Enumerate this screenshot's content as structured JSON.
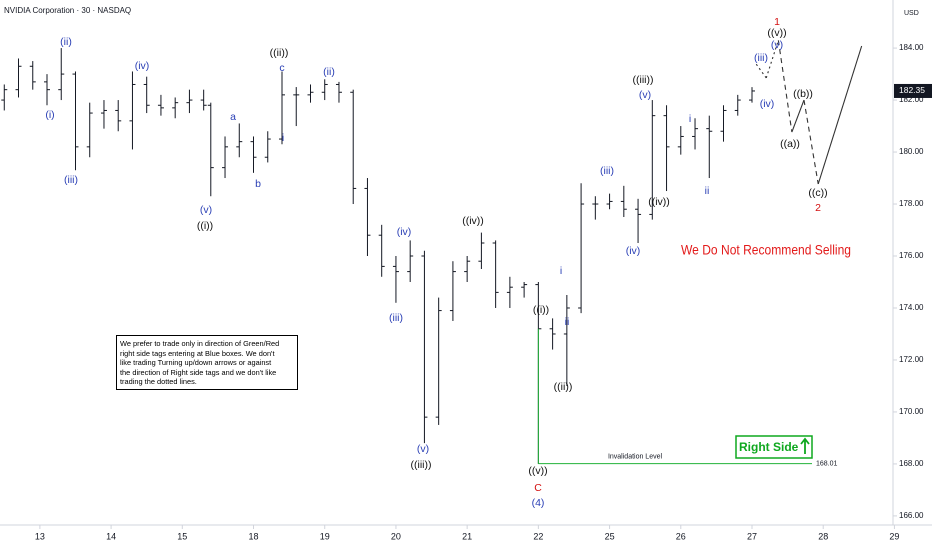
{
  "chart_data": {
    "type": "ohlc",
    "title": "NVIDIA Corporation · 30 · NASDAQ",
    "currency": "USD",
    "color": "#131722",
    "grid": false,
    "xlim": [
      -0.56,
      11.98
    ],
    "ylim": [
      165.65,
      185.85
    ],
    "xticks": [
      {
        "value": 0,
        "label": "13"
      },
      {
        "value": 1,
        "label": "14"
      },
      {
        "value": 2,
        "label": "15"
      },
      {
        "value": 3,
        "label": "18"
      },
      {
        "value": 4,
        "label": "19"
      },
      {
        "value": 5,
        "label": "20"
      },
      {
        "value": 6,
        "label": "21"
      },
      {
        "value": 7,
        "label": "22"
      },
      {
        "value": 8,
        "label": "25"
      },
      {
        "value": 9,
        "label": "26"
      },
      {
        "value": 10,
        "label": "27"
      },
      {
        "value": 11,
        "label": "28"
      },
      {
        "value": 12,
        "label": "29"
      }
    ],
    "yticks": [
      {
        "value": 166,
        "label": "166.00"
      },
      {
        "value": 168,
        "label": "168.00"
      },
      {
        "value": 170,
        "label": "170.00"
      },
      {
        "value": 172,
        "label": "172.00"
      },
      {
        "value": 174,
        "label": "174.00"
      },
      {
        "value": 176,
        "label": "176.00"
      },
      {
        "value": 178,
        "label": "178.00"
      },
      {
        "value": 180,
        "label": "180.00"
      },
      {
        "value": 182,
        "label": "182.00"
      },
      {
        "value": 184,
        "label": "184.00"
      }
    ],
    "x": [
      -0.5,
      -0.3,
      -0.1,
      0.1,
      0.3,
      0.5,
      0.7,
      0.9,
      1.1,
      1.3,
      1.5,
      1.7,
      1.9,
      2.1,
      2.3,
      2.4,
      2.6,
      2.8,
      3.0,
      3.2,
      3.4,
      3.6,
      3.8,
      4.0,
      4.2,
      4.4,
      4.6,
      4.8,
      5.0,
      5.2,
      5.4,
      5.6,
      5.8,
      6.0,
      6.2,
      6.4,
      6.6,
      6.8,
      7.0,
      7.2,
      7.4,
      7.6,
      7.8,
      8.0,
      8.2,
      8.4,
      8.6,
      8.8,
      9.0,
      9.2,
      9.4,
      9.6,
      9.8,
      10.0
    ],
    "open": [
      182.0,
      182.4,
      183.3,
      182.7,
      182.4,
      183.0,
      180.2,
      181.5,
      181.6,
      181.2,
      182.6,
      181.8,
      181.7,
      181.9,
      182.0,
      181.8,
      179.4,
      180.2,
      180.4,
      179.8,
      180.5,
      182.2,
      182.2,
      182.3,
      182.6,
      182.3,
      178.6,
      176.8,
      175.6,
      175.4,
      176.0,
      169.8,
      173.9,
      175.4,
      175.8,
      176.5,
      174.6,
      174.8,
      174.9,
      173.2,
      173.0,
      174.0,
      178.0,
      178.0,
      178.1,
      177.8,
      177.6,
      181.4,
      180.2,
      180.6,
      180.9,
      180.8,
      181.6,
      182.0
    ],
    "high": [
      182.6,
      183.6,
      183.5,
      183.0,
      184.0,
      183.1,
      181.9,
      182.0,
      182.0,
      183.1,
      182.9,
      182.2,
      182.1,
      182.4,
      182.4,
      181.9,
      180.6,
      181.1,
      180.6,
      180.8,
      183.1,
      182.5,
      182.6,
      182.8,
      182.7,
      182.4,
      179.0,
      177.2,
      176.0,
      176.6,
      176.2,
      174.4,
      175.8,
      176.0,
      176.9,
      176.6,
      175.2,
      175.0,
      175.0,
      173.6,
      174.5,
      178.8,
      178.3,
      178.4,
      178.7,
      178.2,
      182.0,
      181.8,
      181.0,
      181.3,
      181.4,
      181.8,
      182.2,
      182.5
    ],
    "low": [
      181.6,
      182.1,
      182.4,
      181.8,
      182.0,
      179.3,
      179.8,
      180.9,
      180.8,
      180.1,
      181.5,
      181.4,
      181.3,
      181.5,
      181.6,
      178.3,
      179.0,
      179.8,
      179.2,
      179.6,
      180.3,
      181.0,
      181.9,
      182.0,
      181.9,
      178.0,
      176.0,
      175.2,
      174.2,
      175.0,
      168.8,
      169.5,
      173.5,
      175.0,
      175.5,
      174.0,
      174.0,
      174.4,
      168.0,
      172.4,
      171.0,
      173.8,
      177.4,
      177.8,
      177.5,
      176.5,
      177.4,
      178.5,
      179.9,
      180.1,
      179.0,
      180.4,
      181.4,
      181.9
    ],
    "close": [
      182.4,
      183.3,
      182.7,
      182.4,
      183.0,
      180.2,
      181.5,
      181.6,
      181.2,
      182.6,
      181.8,
      181.7,
      181.9,
      182.0,
      181.8,
      179.4,
      180.2,
      180.4,
      179.8,
      180.5,
      182.2,
      182.2,
      182.3,
      182.6,
      182.3,
      178.6,
      176.8,
      175.6,
      175.4,
      176.0,
      169.8,
      173.9,
      175.4,
      175.8,
      176.5,
      174.6,
      174.8,
      174.9,
      173.2,
      173.0,
      174.0,
      178.0,
      178.0,
      178.1,
      177.8,
      177.6,
      181.4,
      180.2,
      180.6,
      180.9,
      180.8,
      181.6,
      182.0,
      182.35
    ],
    "last_price": 182.35,
    "projection": {
      "color": "#333333",
      "x": [
        10.06,
        10.2,
        10.37,
        10.56,
        10.73,
        10.93,
        11.54
      ],
      "y": [
        183.38,
        182.85,
        184.3,
        180.77,
        182.0,
        178.77,
        184.08
      ],
      "segment_styles": [
        "dotted",
        "dotted",
        "dashed",
        "solid",
        "dashed",
        "solid"
      ]
    },
    "invalidation": {
      "label": "Invalidation Level",
      "value": 168.01,
      "color": "#22b33a"
    },
    "right_side_tag": {
      "label": "Right Side",
      "color": "#0fa81f"
    },
    "headline": {
      "text": "We Do Not Recommend Selling",
      "color": "#e31b1b"
    },
    "note": [
      "We prefer to trade only in direction of Green/Red",
      "right side tags entering at Blue boxes. We don't",
      "like trading Turning up/down arrows or against",
      "the direction of Right side tags and we don't like",
      "trading the dotted lines."
    ],
    "wave_labels": [
      {
        "text": "(i)",
        "color": "#2a3fb5"
      },
      {
        "text": "(ii)",
        "color": "#2a3fb5"
      },
      {
        "text": "(iii)",
        "color": "#2a3fb5"
      },
      {
        "text": "(iv)",
        "color": "#2a3fb5"
      },
      {
        "text": "(v)",
        "color": "#2a3fb5"
      },
      {
        "text": "((i))",
        "color": "#111111"
      },
      {
        "text": "a",
        "color": "#2a3fb5"
      },
      {
        "text": "b",
        "color": "#2a3fb5"
      },
      {
        "text": "((ii))",
        "color": "#111111"
      },
      {
        "text": "c",
        "color": "#2a3fb5"
      },
      {
        "text": "i",
        "color": "#2a3fb5"
      },
      {
        "text": "(ii)",
        "color": "#2a3fb5"
      },
      {
        "text": "(iv)",
        "color": "#2a3fb5"
      },
      {
        "text": "(iii)",
        "color": "#2a3fb5"
      },
      {
        "text": "(v)",
        "color": "#2a3fb5"
      },
      {
        "text": "((iii))",
        "color": "#111111"
      },
      {
        "text": "((iv))",
        "color": "#111111"
      },
      {
        "text": "((v))",
        "color": "#111111"
      },
      {
        "text": "C",
        "color": "#d41010"
      },
      {
        "text": "(4)",
        "color": "#2a3fb5"
      },
      {
        "text": "((i))",
        "color": "#111111"
      },
      {
        "text": "i",
        "color": "#2a3fb5"
      },
      {
        "text": "ii",
        "color": "#2a3fb5"
      },
      {
        "text": "((ii))",
        "color": "#111111"
      },
      {
        "text": "(iii)",
        "color": "#2a3fb5"
      },
      {
        "text": "((iii))",
        "color": "#111111"
      },
      {
        "text": "(v)",
        "color": "#2a3fb5"
      },
      {
        "text": "(iv)",
        "color": "#2a3fb5"
      },
      {
        "text": "((iv))",
        "color": "#111111"
      },
      {
        "text": "i",
        "color": "#2a3fb5"
      },
      {
        "text": "ii",
        "color": "#2a3fb5"
      },
      {
        "text": "(iii)",
        "color": "#2a3fb5"
      },
      {
        "text": "(iv)",
        "color": "#2a3fb5"
      },
      {
        "text": "1",
        "color": "#d41010"
      },
      {
        "text": "((v))",
        "color": "#111111"
      },
      {
        "text": "(v)",
        "color": "#2a3fb5"
      },
      {
        "text": "((b))",
        "color": "#111111"
      },
      {
        "text": "((a))",
        "color": "#111111"
      },
      {
        "text": "((c))",
        "color": "#111111"
      },
      {
        "text": "2",
        "color": "#d41010"
      }
    ]
  }
}
